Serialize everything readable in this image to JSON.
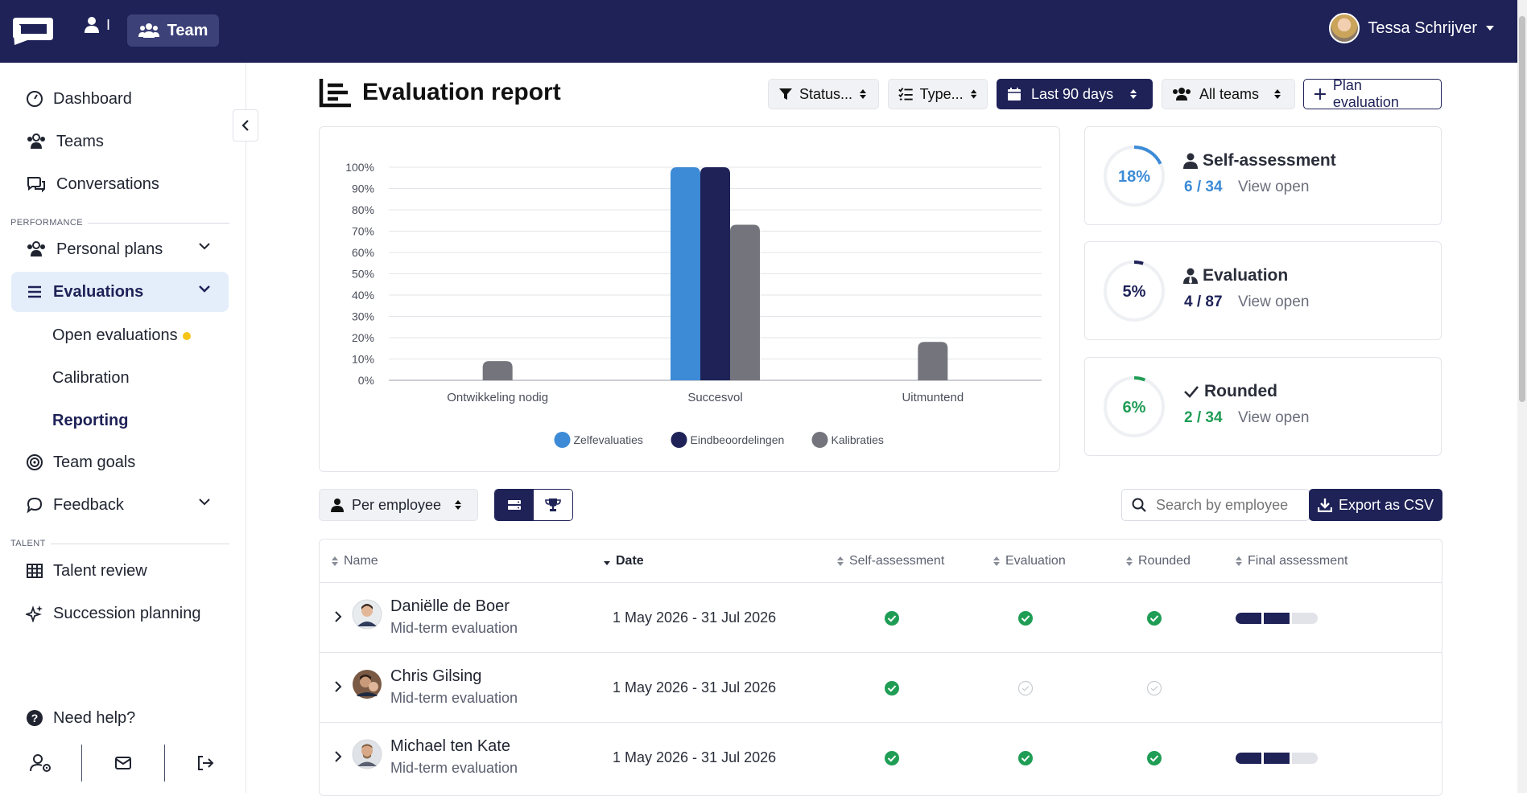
{
  "topbar": {
    "user_separator": "I",
    "team_label": "Team",
    "user_name": "Tessa Schrijver"
  },
  "sidebar": {
    "items": [
      {
        "label": "Dashboard"
      },
      {
        "label": "Teams"
      },
      {
        "label": "Conversations"
      }
    ],
    "performance_label": "PERFORMANCE",
    "performance_items": [
      {
        "label": "Personal plans"
      },
      {
        "label": "Evaluations"
      }
    ],
    "evaluation_subitems": [
      {
        "label": "Open evaluations"
      },
      {
        "label": "Calibration"
      },
      {
        "label": "Reporting"
      }
    ],
    "more_items": [
      {
        "label": "Team goals"
      },
      {
        "label": "Feedback"
      }
    ],
    "talent_label": "TALENT",
    "talent_items": [
      {
        "label": "Talent review"
      },
      {
        "label": "Succession planning"
      }
    ],
    "help_label": "Need help?"
  },
  "header": {
    "title": "Evaluation report",
    "filters": {
      "status": "Status...",
      "type": "Type...",
      "period": "Last 90 days",
      "teams": "All teams",
      "plan_button": "Plan evaluation"
    }
  },
  "chart_data": {
    "type": "bar",
    "categories": [
      "Ontwikkeling nodig",
      "Succesvol",
      "Uitmuntend"
    ],
    "series": [
      {
        "name": "Zelfevaluaties",
        "values": [
          0,
          100,
          0
        ],
        "color": "#3d8bd6"
      },
      {
        "name": "Eindbeoordelingen",
        "values": [
          0,
          100,
          0
        ],
        "color": "#1e2257"
      },
      {
        "name": "Kalibraties",
        "values": [
          9,
          73,
          18
        ],
        "color": "#74757c"
      }
    ],
    "yticks": [
      "0%",
      "10%",
      "20%",
      "30%",
      "40%",
      "50%",
      "60%",
      "70%",
      "80%",
      "90%",
      "100%"
    ],
    "ylim": [
      0,
      100
    ],
    "legend_position": "bottom",
    "grid": true
  },
  "stats": [
    {
      "title": "Self-assessment",
      "percent": "18%",
      "percent_value": 18,
      "count": "6 / 34",
      "link": "View open",
      "color": "#3d8bd6",
      "icon": "user-icon"
    },
    {
      "title": "Evaluation",
      "percent": "5%",
      "percent_value": 5,
      "count": "4 / 87",
      "link": "View open",
      "color": "#1e2257",
      "icon": "user-tie-icon"
    },
    {
      "title": "Rounded",
      "percent": "6%",
      "percent_value": 6,
      "count": "2 / 34",
      "link": "View open",
      "color": "#1f9d55",
      "icon": "check-icon"
    }
  ],
  "toolbar": {
    "group_by": "Per employee",
    "search_placeholder": "Search by employee",
    "export_label": "Export as CSV"
  },
  "table": {
    "columns": [
      "Name",
      "Date",
      "Self-assessment",
      "Evaluation",
      "Rounded",
      "Final assessment"
    ],
    "rows": [
      {
        "name": "Daniëlle de Boer",
        "type": "Mid-term evaluation",
        "date": "1 May 2026 - 31 Jul 2026",
        "self": true,
        "evaluation": true,
        "rounded": true,
        "final_filled": 2,
        "final_total": 3
      },
      {
        "name": "Chris Gilsing",
        "type": "Mid-term evaluation",
        "date": "1 May 2026 - 31 Jul 2026",
        "self": true,
        "evaluation": false,
        "rounded": false,
        "final_filled": 0,
        "final_total": 0
      },
      {
        "name": "Michael ten Kate",
        "type": "Mid-term evaluation",
        "date": "1 May 2026 - 31 Jul 2026",
        "self": true,
        "evaluation": true,
        "rounded": true,
        "final_filled": 2,
        "final_total": 3
      }
    ]
  }
}
